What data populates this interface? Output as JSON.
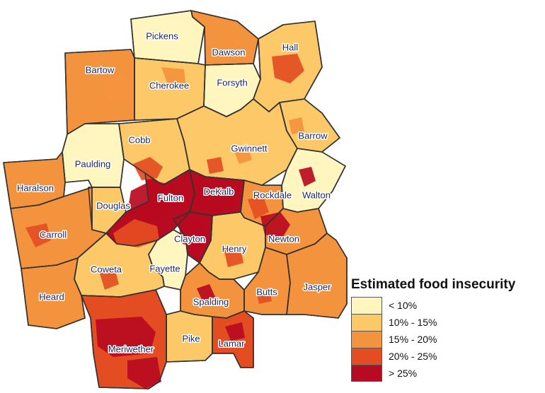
{
  "legend": {
    "title": "Estimated food insecurity",
    "classes": [
      {
        "label": "< 10%",
        "color": "#fff6bf"
      },
      {
        "label": "10% - 15%",
        "color": "#fdc868"
      },
      {
        "label": "15% - 20%",
        "color": "#f4933e"
      },
      {
        "label": "20% - 25%",
        "color": "#e44d22"
      },
      {
        "label": "> 25%",
        "color": "#b80a20"
      }
    ]
  },
  "counties": [
    {
      "name": "Pickens",
      "class": 0
    },
    {
      "name": "Dawson",
      "class": 2
    },
    {
      "name": "Hall",
      "class": 1
    },
    {
      "name": "Bartow",
      "class": 2
    },
    {
      "name": "Cherokee",
      "class": 1
    },
    {
      "name": "Forsyth",
      "class": 0
    },
    {
      "name": "Barrow",
      "class": 1
    },
    {
      "name": "Cobb",
      "class": 1
    },
    {
      "name": "Gwinnett",
      "class": 1
    },
    {
      "name": "Paulding",
      "class": 0
    },
    {
      "name": "Haralson",
      "class": 2
    },
    {
      "name": "Fulton",
      "class": 4
    },
    {
      "name": "DeKalb",
      "class": 4
    },
    {
      "name": "Rockdale",
      "class": 2
    },
    {
      "name": "Walton",
      "class": 0
    },
    {
      "name": "Douglas",
      "class": 1
    },
    {
      "name": "Carroll",
      "class": 2
    },
    {
      "name": "Clayton",
      "class": 4
    },
    {
      "name": "Newton",
      "class": 2
    },
    {
      "name": "Henry",
      "class": 1
    },
    {
      "name": "Coweta",
      "class": 1
    },
    {
      "name": "Fayette",
      "class": 0
    },
    {
      "name": "Heard",
      "class": 2
    },
    {
      "name": "Butts",
      "class": 2
    },
    {
      "name": "Jasper",
      "class": 2
    },
    {
      "name": "Spalding",
      "class": 2
    },
    {
      "name": "Pike",
      "class": 1
    },
    {
      "name": "Lamar",
      "class": 3
    },
    {
      "name": "Meriwether",
      "class": 3
    }
  ]
}
